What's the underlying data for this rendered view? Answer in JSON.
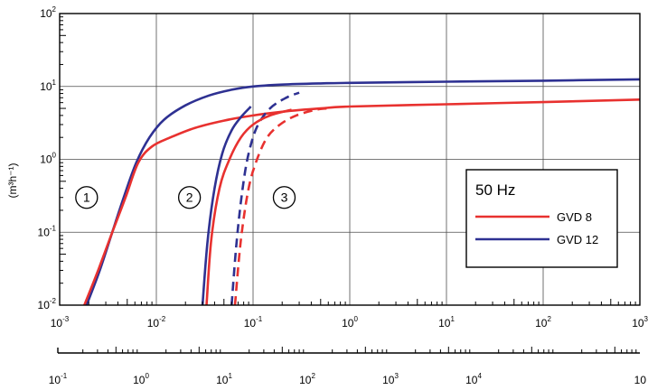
{
  "chart_data": {
    "type": "line",
    "title": "",
    "ylabel": "(m³h⁻¹)",
    "x_scale": "log",
    "y_scale": "log",
    "xlim": [
      0.001,
      1000
    ],
    "ylim": [
      0.01,
      100
    ],
    "grid": true,
    "x_ticks": [
      {
        "base": "10",
        "exp": "-3"
      },
      {
        "base": "10",
        "exp": "-2"
      },
      {
        "base": "10",
        "exp": "-1"
      },
      {
        "base": "10",
        "exp": "0"
      },
      {
        "base": "10",
        "exp": "1"
      },
      {
        "base": "10",
        "exp": "2"
      },
      {
        "base": "10",
        "exp": "3"
      }
    ],
    "y_ticks": [
      {
        "base": "10",
        "exp": "2"
      },
      {
        "base": "10",
        "exp": "1"
      },
      {
        "base": "10",
        "exp": "0"
      },
      {
        "base": "10",
        "exp": "-1"
      },
      {
        "base": "10",
        "exp": "-2"
      }
    ],
    "secondary_x_ticks": [
      {
        "base": "10",
        "exp": "-1"
      },
      {
        "base": "10",
        "exp": "0"
      },
      {
        "base": "10",
        "exp": "1"
      },
      {
        "base": "10",
        "exp": "2"
      },
      {
        "base": "10",
        "exp": "3"
      },
      {
        "base": "10",
        "exp": "4"
      },
      {
        "base": "10",
        "exp": ""
      }
    ],
    "secondary_x_range": [
      0.1,
      1000000
    ],
    "legend": {
      "title": "50 Hz",
      "position": "right",
      "entries": [
        {
          "label": "GVD 8",
          "color": "#e8312f"
        },
        {
          "label": "GVD 12",
          "color": "#2e3192"
        }
      ]
    },
    "annotations": [
      {
        "text": "1",
        "x": 0.0019,
        "y": 0.3
      },
      {
        "text": "2",
        "x": 0.022,
        "y": 0.3
      },
      {
        "text": "3",
        "x": 0.21,
        "y": 0.3
      }
    ],
    "series": [
      {
        "group": "GVD 12",
        "line": "solid",
        "color": "#2e3192",
        "x": [
          0.0019,
          0.0026,
          0.0035,
          0.0046,
          0.0062,
          0.0085,
          0.012,
          0.02,
          0.035,
          0.06,
          0.1,
          0.2,
          0.5,
          1,
          10,
          100,
          1000
        ],
        "y": [
          0.01,
          0.03,
          0.1,
          0.3,
          0.9,
          2.0,
          3.5,
          5.5,
          7.5,
          9.0,
          10.0,
          10.6,
          11.0,
          11.2,
          11.6,
          12.0,
          12.5
        ]
      },
      {
        "group": "GVD 8",
        "line": "solid",
        "color": "#e8312f",
        "x": [
          0.0018,
          0.0025,
          0.0035,
          0.0048,
          0.0065,
          0.009,
          0.014,
          0.025,
          0.05,
          0.1,
          0.2,
          0.5,
          1,
          10,
          100,
          1000
        ],
        "y": [
          0.01,
          0.03,
          0.1,
          0.3,
          0.9,
          1.5,
          2.0,
          2.7,
          3.4,
          4.0,
          4.5,
          5.0,
          5.3,
          5.7,
          6.1,
          6.6
        ]
      },
      {
        "group": "GVD 12",
        "line": "solid",
        "color": "#2e3192",
        "x": [
          0.03,
          0.034,
          0.04,
          0.048,
          0.06,
          0.075,
          0.095
        ],
        "y": [
          0.01,
          0.08,
          0.4,
          1.2,
          2.5,
          3.8,
          5.3
        ]
      },
      {
        "group": "GVD 12",
        "line": "dashed",
        "color": "#2e3192",
        "x": [
          0.06,
          0.068,
          0.078,
          0.09,
          0.11,
          0.15,
          0.22,
          0.3
        ],
        "y": [
          0.01,
          0.08,
          0.4,
          1.2,
          2.8,
          5.0,
          7.0,
          8.2
        ]
      },
      {
        "group": "GVD 8",
        "line": "solid",
        "color": "#e8312f",
        "x": [
          0.033,
          0.037,
          0.045,
          0.057,
          0.075,
          0.1,
          0.15,
          0.25
        ],
        "y": [
          0.01,
          0.08,
          0.4,
          1.0,
          2.0,
          3.0,
          4.0,
          4.8
        ]
      },
      {
        "group": "GVD 8",
        "line": "dashed",
        "color": "#e8312f",
        "x": [
          0.065,
          0.075,
          0.09,
          0.11,
          0.14,
          0.19,
          0.28,
          0.45,
          0.6
        ],
        "y": [
          0.01,
          0.08,
          0.4,
          1.0,
          2.0,
          3.0,
          4.0,
          4.8,
          5.0
        ]
      }
    ]
  }
}
